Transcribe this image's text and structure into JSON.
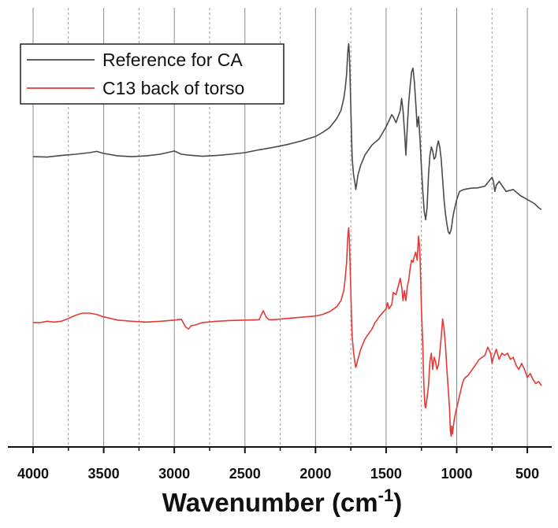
{
  "chart_data": {
    "type": "line",
    "title": "",
    "xlabel": "Wavenumber (cm",
    "xlabel_superscript": "-1",
    "xlabel_close": ")",
    "ylabel": "",
    "xlim": [
      4000,
      400
    ],
    "x_reversed": true,
    "ylim": [
      0,
      100
    ],
    "y_ticks_shown": false,
    "grid": {
      "x": true,
      "y": false
    },
    "x_major_ticks": [
      4000,
      3500,
      3000,
      2500,
      2000,
      1500,
      1000,
      500
    ],
    "x_minor_ticks": [
      3750,
      3250,
      2750,
      2250,
      1750,
      1250,
      750
    ],
    "x_tick_labels": [
      "4000",
      "3500",
      "3000",
      "2500",
      "2000",
      "1500",
      "1000",
      "500"
    ],
    "legend": {
      "position": "top-left",
      "entries": [
        "Reference for CA",
        "C13 back of torso"
      ]
    },
    "series": [
      {
        "name": "Reference for CA",
        "color": "#4a4a4a",
        "x": [
          4000,
          3900,
          3800,
          3700,
          3600,
          3550,
          3500,
          3400,
          3300,
          3200,
          3100,
          3000,
          2950,
          2900,
          2800,
          2700,
          2600,
          2500,
          2400,
          2300,
          2200,
          2100,
          2000,
          1950,
          1900,
          1850,
          1820,
          1800,
          1790,
          1780,
          1775,
          1770,
          1765,
          1760,
          1755,
          1750,
          1745,
          1740,
          1730,
          1720,
          1715,
          1710,
          1700,
          1680,
          1650,
          1600,
          1550,
          1500,
          1480,
          1460,
          1450,
          1430,
          1400,
          1390,
          1380,
          1370,
          1360,
          1350,
          1340,
          1330,
          1320,
          1310,
          1300,
          1290,
          1280,
          1270,
          1260,
          1250,
          1240,
          1230,
          1220,
          1210,
          1200,
          1190,
          1180,
          1170,
          1160,
          1150,
          1140,
          1130,
          1120,
          1110,
          1100,
          1090,
          1080,
          1070,
          1060,
          1050,
          1040,
          1035,
          1030,
          1020,
          1000,
          980,
          950,
          900,
          850,
          800,
          750,
          740,
          730,
          720,
          700,
          650,
          600,
          550,
          500,
          450,
          420,
          400
        ],
        "y": [
          70.6,
          70.5,
          70.9,
          71.2,
          71.6,
          71.9,
          71.4,
          70.8,
          70.6,
          70.8,
          71.2,
          72.0,
          71.2,
          71.0,
          70.7,
          70.9,
          71.2,
          71.6,
          72.3,
          72.9,
          73.6,
          74.5,
          75.6,
          76.6,
          77.8,
          80.0,
          82.0,
          85.0,
          87.5,
          91.0,
          94.0,
          97.0,
          98.5,
          96.0,
          90.0,
          83.0,
          76.0,
          70.0,
          66.0,
          64.0,
          62.5,
          63.5,
          66.0,
          68.5,
          71.0,
          73.5,
          75.0,
          78.0,
          79.5,
          81.0,
          80.5,
          79.0,
          82.0,
          85.0,
          82.0,
          77.0,
          71.0,
          78.0,
          84.0,
          88.0,
          91.5,
          92.5,
          89.0,
          84.0,
          78.0,
          80.5,
          75.0,
          68.0,
          62.0,
          57.0,
          55.0,
          58.0,
          66.0,
          71.0,
          73.0,
          72.0,
          70.0,
          70.5,
          73.0,
          74.5,
          73.0,
          70.0,
          65.0,
          60.0,
          56.5,
          54.0,
          52.0,
          51.5,
          52.5,
          53.5,
          55.0,
          57.0,
          60.0,
          62.0,
          62.5,
          62.8,
          62.9,
          63.3,
          65.5,
          64.5,
          62.0,
          63.5,
          64.5,
          62.0,
          62.5,
          61.0,
          60.0,
          59.0,
          58.0,
          57.5
        ]
      },
      {
        "name": "C13 back of torso",
        "color": "#e53935",
        "x": [
          4000,
          3950,
          3900,
          3850,
          3800,
          3750,
          3700,
          3650,
          3600,
          3550,
          3500,
          3400,
          3300,
          3200,
          3100,
          3000,
          2950,
          2920,
          2900,
          2880,
          2850,
          2800,
          2700,
          2600,
          2500,
          2400,
          2370,
          2350,
          2330,
          2300,
          2200,
          2100,
          2000,
          1950,
          1900,
          1850,
          1820,
          1800,
          1790,
          1780,
          1775,
          1770,
          1765,
          1760,
          1755,
          1750,
          1745,
          1740,
          1730,
          1720,
          1715,
          1710,
          1700,
          1680,
          1650,
          1620,
          1600,
          1580,
          1550,
          1500,
          1490,
          1480,
          1460,
          1450,
          1430,
          1400,
          1390,
          1380,
          1370,
          1360,
          1350,
          1340,
          1330,
          1320,
          1310,
          1300,
          1290,
          1280,
          1270,
          1265,
          1260,
          1255,
          1250,
          1240,
          1235,
          1230,
          1225,
          1220,
          1210,
          1200,
          1190,
          1180,
          1170,
          1160,
          1150,
          1140,
          1130,
          1120,
          1110,
          1100,
          1090,
          1080,
          1070,
          1060,
          1050,
          1045,
          1040,
          1035,
          1030,
          1025,
          1020,
          1010,
          1000,
          990,
          980,
          970,
          960,
          950,
          940,
          920,
          900,
          880,
          860,
          840,
          820,
          800,
          780,
          760,
          750,
          740,
          720,
          700,
          680,
          660,
          640,
          620,
          600,
          580,
          560,
          540,
          520,
          500,
          480,
          460,
          440,
          420,
          400
        ],
        "y": [
          29.6,
          29.6,
          29.9,
          29.7,
          29.9,
          30.6,
          31.4,
          31.9,
          31.9,
          31.6,
          31.0,
          30.2,
          29.9,
          29.7,
          29.9,
          30.2,
          30.4,
          28.5,
          28.0,
          28.8,
          29.0,
          29.6,
          29.9,
          30.1,
          30.2,
          30.3,
          32.5,
          31.0,
          30.3,
          30.3,
          30.6,
          30.9,
          31.2,
          31.6,
          32.3,
          33.5,
          35.0,
          37.5,
          40.5,
          44.5,
          48.0,
          51.5,
          53.0,
          50.0,
          44.0,
          37.5,
          31.0,
          26.0,
          22.0,
          19.5,
          18.5,
          19.0,
          20.5,
          23.0,
          25.5,
          27.0,
          28.0,
          29.5,
          31.0,
          33.0,
          34.5,
          33.0,
          34.0,
          37.0,
          36.5,
          40.5,
          38.5,
          35.0,
          37.5,
          35.0,
          38.5,
          40.0,
          43.0,
          45.0,
          44.5,
          46.0,
          47.0,
          45.0,
          51.0,
          49.0,
          46.0,
          40.0,
          33.0,
          24.0,
          16.5,
          12.0,
          9.0,
          8.5,
          11.0,
          14.0,
          20.0,
          22.0,
          18.0,
          21.0,
          20.0,
          18.0,
          19.0,
          22.0,
          26.0,
          30.5,
          28.0,
          24.0,
          18.0,
          13.0,
          8.0,
          3.0,
          1.5,
          4.0,
          2.0,
          3.5,
          5.0,
          7.0,
          8.5,
          10.0,
          11.5,
          13.0,
          14.5,
          15.5,
          16.0,
          16.5,
          17.5,
          18.5,
          19.5,
          20.5,
          21.0,
          21.5,
          23.5,
          22.0,
          19.5,
          21.0,
          23.0,
          20.5,
          22.0,
          21.5,
          22.0,
          20.5,
          21.0,
          19.0,
          18.0,
          19.5,
          18.0,
          16.0,
          17.0,
          15.5,
          14.5,
          15.0,
          14.0
        ]
      }
    ]
  }
}
